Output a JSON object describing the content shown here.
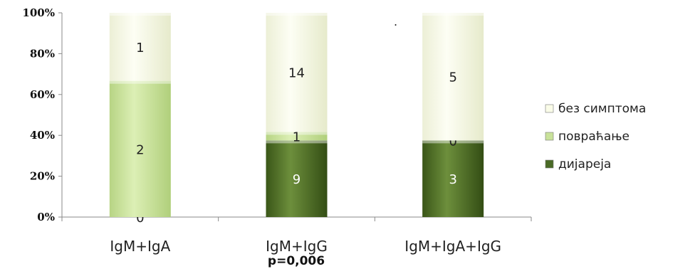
{
  "chart_data": {
    "type": "bar",
    "stacked": "percent",
    "categories": [
      "IgM+IgA",
      "IgM+IgG",
      "IgM+IgA+IgG"
    ],
    "series": [
      {
        "name": "дијареја",
        "values": [
          0,
          9,
          3
        ],
        "color": "#4a6a26"
      },
      {
        "name": "повраћање",
        "values": [
          2,
          1,
          0
        ],
        "color": "#c9e29a"
      },
      {
        "name": "без симптома",
        "values": [
          1,
          14,
          5
        ],
        "color": "#fafce8"
      }
    ],
    "y_ticks": [
      "0%",
      "20%",
      "40%",
      "60%",
      "80%",
      "100%"
    ],
    "ylim": [
      0,
      100
    ],
    "annotations": [
      "p=0,006",
      "."
    ],
    "legend_position": "right",
    "grid": false
  }
}
